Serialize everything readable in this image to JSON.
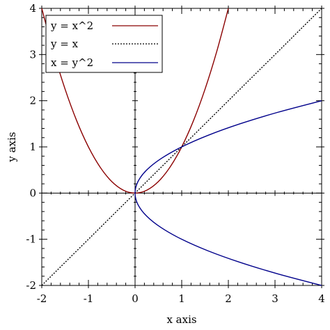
{
  "chart_data": {
    "type": "line",
    "xlabel": "x axis",
    "ylabel": "y axis",
    "xlim": [
      -2,
      4
    ],
    "ylim": [
      -2,
      4
    ],
    "x_ticks": [
      -2,
      -1,
      0,
      1,
      2,
      3,
      4
    ],
    "y_ticks": [
      -2,
      -1,
      0,
      1,
      2,
      3,
      4
    ],
    "x_tick_labels": [
      "-2",
      "-1",
      "0",
      "1",
      "2",
      "3",
      "4"
    ],
    "y_tick_labels": [
      "-2",
      "-1",
      "0",
      "1",
      "2",
      "3",
      "4"
    ],
    "minor_ticks_per_major": 4,
    "origin_axes": true,
    "grid": false,
    "legend_position": "top-left",
    "series": [
      {
        "name": "y = x^2",
        "color": "#8b0000",
        "style": "solid",
        "points": [
          [
            -2,
            4
          ],
          [
            -1.75,
            3.0625
          ],
          [
            -1.5,
            2.25
          ],
          [
            -1.25,
            1.5625
          ],
          [
            -1,
            1
          ],
          [
            -0.75,
            0.5625
          ],
          [
            -0.5,
            0.25
          ],
          [
            -0.25,
            0.0625
          ],
          [
            0,
            0
          ],
          [
            0.25,
            0.0625
          ],
          [
            0.5,
            0.25
          ],
          [
            0.75,
            0.5625
          ],
          [
            1,
            1
          ],
          [
            1.25,
            1.5625
          ],
          [
            1.5,
            2.25
          ],
          [
            1.75,
            3.0625
          ],
          [
            2,
            4
          ]
        ]
      },
      {
        "name": "y = x",
        "color": "#000000",
        "style": "dotted",
        "points": [
          [
            -2,
            -2
          ],
          [
            4,
            4
          ]
        ]
      },
      {
        "name": "x = y^2",
        "color": "#00008b",
        "style": "solid",
        "points": [
          [
            4,
            -2
          ],
          [
            3.0625,
            -1.75
          ],
          [
            2.25,
            -1.5
          ],
          [
            1.5625,
            -1.25
          ],
          [
            1,
            -1
          ],
          [
            0.5625,
            -0.75
          ],
          [
            0.25,
            -0.5
          ],
          [
            0.0625,
            -0.25
          ],
          [
            0,
            0
          ],
          [
            0.0625,
            0.25
          ],
          [
            0.25,
            0.5
          ],
          [
            0.5625,
            0.75
          ],
          [
            1,
            1
          ],
          [
            1.5625,
            1.25
          ],
          [
            2.25,
            1.5
          ],
          [
            3.0625,
            1.75
          ],
          [
            4,
            2
          ]
        ]
      }
    ]
  }
}
